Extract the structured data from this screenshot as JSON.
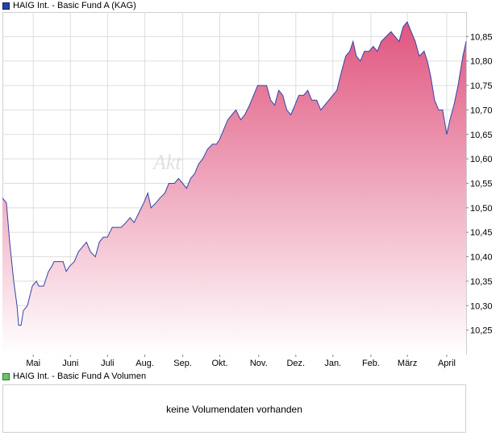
{
  "legend": {
    "price_label": "HAIG Int. - Basic Fund A (KAG)",
    "volume_label": "HAIG Int. - Basic Fund A Volumen"
  },
  "watermark": "Akt",
  "volume_panel": {
    "message": "keine Volumendaten vorhanden"
  },
  "colors": {
    "line": "#3344aa",
    "fill_top": "#e0557f",
    "fill_bottom": "#ffffff",
    "grid": "#dddddd",
    "swatch_price": "#2244aa",
    "swatch_volume": "#6cc36c"
  },
  "chart_data": {
    "type": "area",
    "title": "HAIG Int. - Basic Fund A (KAG)",
    "xlabel": "",
    "ylabel": "",
    "ylim": [
      10.2,
      10.9
    ],
    "yticks": [
      "10,25",
      "10,30",
      "10,35",
      "10,40",
      "10,45",
      "10,50",
      "10,55",
      "10,60",
      "10,65",
      "10,70",
      "10,75",
      "10,80",
      "10,85"
    ],
    "xtick_labels": [
      "Mai",
      "Juni",
      "Juli",
      "Aug.",
      "Sep.",
      "Okt.",
      "Nov.",
      "Dez.",
      "Jan.",
      "Feb.",
      "März",
      "April"
    ],
    "xticks": [
      0.0665,
      0.1466,
      0.2267,
      0.3071,
      0.3888,
      0.4688,
      0.5526,
      0.6327,
      0.7127,
      0.7947,
      0.8733,
      0.9582
    ],
    "grid": true,
    "series": [
      {
        "name": "HAIG Int. - Basic Fund A (KAG)",
        "points": [
          [
            0.0,
            10.52
          ],
          [
            0.0087,
            10.51
          ],
          [
            0.0157,
            10.43
          ],
          [
            0.0244,
            10.35
          ],
          [
            0.0314,
            10.3
          ],
          [
            0.0349,
            10.26
          ],
          [
            0.0401,
            10.26
          ],
          [
            0.0453,
            10.29
          ],
          [
            0.054,
            10.3
          ],
          [
            0.0645,
            10.34
          ],
          [
            0.0732,
            10.35
          ],
          [
            0.0784,
            10.34
          ],
          [
            0.0889,
            10.34
          ],
          [
            0.0993,
            10.37
          ],
          [
            0.1063,
            10.38
          ],
          [
            0.1115,
            10.39
          ],
          [
            0.122,
            10.39
          ],
          [
            0.1307,
            10.39
          ],
          [
            0.1376,
            10.37
          ],
          [
            0.1446,
            10.38
          ],
          [
            0.1551,
            10.39
          ],
          [
            0.1638,
            10.41
          ],
          [
            0.1725,
            10.42
          ],
          [
            0.1812,
            10.43
          ],
          [
            0.1899,
            10.41
          ],
          [
            0.2003,
            10.4
          ],
          [
            0.2091,
            10.43
          ],
          [
            0.2178,
            10.44
          ],
          [
            0.2265,
            10.44
          ],
          [
            0.2369,
            10.46
          ],
          [
            0.2474,
            10.46
          ],
          [
            0.2561,
            10.46
          ],
          [
            0.2666,
            10.47
          ],
          [
            0.2753,
            10.48
          ],
          [
            0.284,
            10.47
          ],
          [
            0.2945,
            10.49
          ],
          [
            0.3049,
            10.51
          ],
          [
            0.3136,
            10.53
          ],
          [
            0.3206,
            10.5
          ],
          [
            0.331,
            10.51
          ],
          [
            0.3397,
            10.52
          ],
          [
            0.3502,
            10.53
          ],
          [
            0.3589,
            10.55
          ],
          [
            0.3711,
            10.55
          ],
          [
            0.3798,
            10.56
          ],
          [
            0.3885,
            10.55
          ],
          [
            0.3972,
            10.54
          ],
          [
            0.4059,
            10.56
          ],
          [
            0.4146,
            10.57
          ],
          [
            0.4233,
            10.59
          ],
          [
            0.432,
            10.6
          ],
          [
            0.4425,
            10.62
          ],
          [
            0.453,
            10.63
          ],
          [
            0.4617,
            10.63
          ],
          [
            0.4686,
            10.64
          ],
          [
            0.4773,
            10.66
          ],
          [
            0.4861,
            10.68
          ],
          [
            0.4948,
            10.69
          ],
          [
            0.5035,
            10.7
          ],
          [
            0.5139,
            10.68
          ],
          [
            0.5226,
            10.69
          ],
          [
            0.5331,
            10.71
          ],
          [
            0.5418,
            10.73
          ],
          [
            0.5505,
            10.75
          ],
          [
            0.5592,
            10.75
          ],
          [
            0.5697,
            10.75
          ],
          [
            0.5784,
            10.72
          ],
          [
            0.5871,
            10.71
          ],
          [
            0.5958,
            10.74
          ],
          [
            0.6045,
            10.73
          ],
          [
            0.6132,
            10.7
          ],
          [
            0.6219,
            10.69
          ],
          [
            0.6307,
            10.71
          ],
          [
            0.6394,
            10.73
          ],
          [
            0.6498,
            10.73
          ],
          [
            0.6585,
            10.74
          ],
          [
            0.6672,
            10.72
          ],
          [
            0.6777,
            10.72
          ],
          [
            0.6864,
            10.7
          ],
          [
            0.6951,
            10.71
          ],
          [
            0.7038,
            10.72
          ],
          [
            0.7125,
            10.73
          ],
          [
            0.7212,
            10.74
          ],
          [
            0.7317,
            10.78
          ],
          [
            0.7404,
            10.81
          ],
          [
            0.7491,
            10.82
          ],
          [
            0.7561,
            10.84
          ],
          [
            0.7631,
            10.81
          ],
          [
            0.7718,
            10.8
          ],
          [
            0.7805,
            10.82
          ],
          [
            0.7909,
            10.82
          ],
          [
            0.7996,
            10.83
          ],
          [
            0.8083,
            10.82
          ],
          [
            0.817,
            10.84
          ],
          [
            0.8275,
            10.85
          ],
          [
            0.838,
            10.86
          ],
          [
            0.8467,
            10.85
          ],
          [
            0.8554,
            10.84
          ],
          [
            0.8641,
            10.87
          ],
          [
            0.8728,
            10.88
          ],
          [
            0.8815,
            10.86
          ],
          [
            0.8902,
            10.84
          ],
          [
            0.8989,
            10.81
          ],
          [
            0.9094,
            10.82
          ],
          [
            0.9163,
            10.8
          ],
          [
            0.9233,
            10.77
          ],
          [
            0.932,
            10.72
          ],
          [
            0.9407,
            10.7
          ],
          [
            0.9494,
            10.7
          ],
          [
            0.9582,
            10.65
          ],
          [
            0.9651,
            10.68
          ],
          [
            0.9738,
            10.71
          ],
          [
            0.9826,
            10.75
          ],
          [
            0.993,
            10.81
          ],
          [
            1.0,
            10.84
          ]
        ]
      }
    ]
  }
}
